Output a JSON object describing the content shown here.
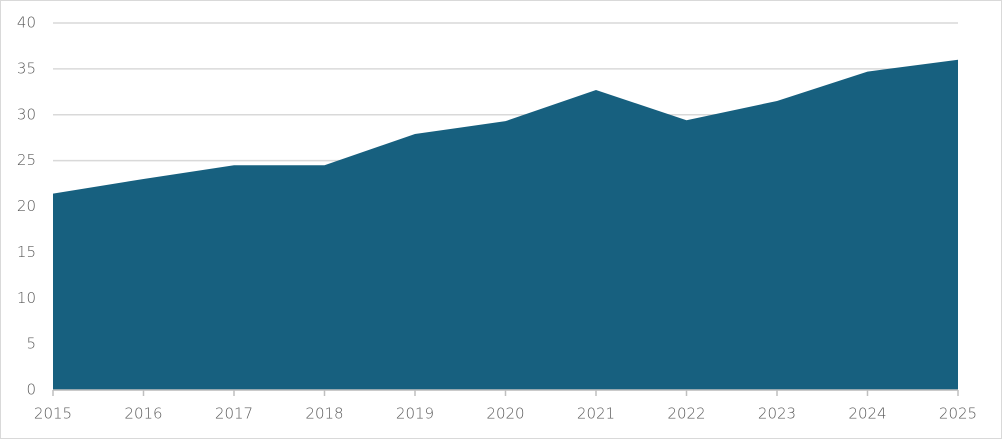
{
  "chart_data": {
    "type": "area",
    "x": [
      2015,
      2016,
      2017,
      2018,
      2019,
      2020,
      2021,
      2022,
      2023,
      2024,
      2025
    ],
    "values": [
      21.4,
      23.0,
      24.5,
      24.5,
      27.9,
      29.3,
      32.7,
      29.4,
      31.5,
      34.7,
      36.0
    ],
    "color": "#17607f",
    "xlim": [
      2015,
      2025
    ],
    "xticks": [
      2015,
      2016,
      2017,
      2018,
      2019,
      2020,
      2021,
      2022,
      2023,
      2024,
      2025
    ],
    "ylim": [
      0,
      40
    ],
    "yticks": [
      0,
      5,
      10,
      15,
      20,
      25,
      30,
      35,
      40
    ],
    "grid": true
  }
}
